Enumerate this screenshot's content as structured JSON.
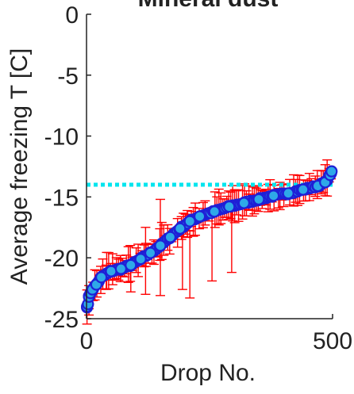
{
  "chart_data": {
    "type": "scatter",
    "title": "Mineral dust",
    "xlabel": "Drop No.",
    "ylabel": "Average freezing T [C]",
    "xlim": [
      0,
      500
    ],
    "ylim": [
      -25,
      0
    ],
    "xticks": [
      0,
      500
    ],
    "yticks": [
      0,
      -5,
      -10,
      -15,
      -20,
      -25
    ],
    "xtick_labels": [
      "0",
      "500"
    ],
    "ytick_labels": [
      "0",
      "-5",
      "-10",
      "-15",
      "-20",
      "-25"
    ],
    "grid": false,
    "box": false,
    "reference_line": {
      "y": -14,
      "style": "dotted",
      "color": "#00e5ee"
    },
    "sample_points": [
      {
        "x": 1,
        "y": -24.0
      },
      {
        "x": 3,
        "y": -23.8
      },
      {
        "x": 5,
        "y": -23.2
      },
      {
        "x": 8,
        "y": -22.9
      },
      {
        "x": 12,
        "y": -22.6
      },
      {
        "x": 20,
        "y": -22.2
      },
      {
        "x": 30,
        "y": -21.6
      },
      {
        "x": 50,
        "y": -21.1
      },
      {
        "x": 70,
        "y": -20.9
      },
      {
        "x": 90,
        "y": -20.6
      },
      {
        "x": 110,
        "y": -20.1
      },
      {
        "x": 130,
        "y": -19.6
      },
      {
        "x": 150,
        "y": -19.0
      },
      {
        "x": 170,
        "y": -18.3
      },
      {
        "x": 190,
        "y": -17.6
      },
      {
        "x": 210,
        "y": -17.0
      },
      {
        "x": 230,
        "y": -16.6
      },
      {
        "x": 260,
        "y": -16.2
      },
      {
        "x": 290,
        "y": -15.8
      },
      {
        "x": 320,
        "y": -15.5
      },
      {
        "x": 350,
        "y": -15.2
      },
      {
        "x": 380,
        "y": -14.9
      },
      {
        "x": 410,
        "y": -14.7
      },
      {
        "x": 440,
        "y": -14.4
      },
      {
        "x": 470,
        "y": -14.1
      },
      {
        "x": 485,
        "y": -13.8
      },
      {
        "x": 495,
        "y": -13.2
      },
      {
        "x": 498,
        "y": -12.9
      }
    ],
    "notable_error_bars": [
      {
        "x": 5,
        "low": -24.7,
        "high": -23.0
      },
      {
        "x": 40,
        "low": -22.6,
        "high": -20.6
      },
      {
        "x": 90,
        "low": -22.8,
        "high": -20.5
      },
      {
        "x": 120,
        "low": -23.0,
        "high": -17.5
      },
      {
        "x": 150,
        "low": -23.1,
        "high": -15.2
      },
      {
        "x": 195,
        "low": -22.6,
        "high": -17.9
      },
      {
        "x": 210,
        "low": -23.3,
        "high": -17.8
      },
      {
        "x": 255,
        "low": -21.9,
        "high": -16.0
      },
      {
        "x": 295,
        "low": -21.2,
        "high": -15.8
      },
      {
        "x": 330,
        "low": -16.1,
        "high": -14.1
      },
      {
        "x": 390,
        "low": -15.9,
        "high": -14.3
      }
    ],
    "colors": {
      "marker_fill": "#2ea8e8",
      "marker_edge": "#1f1fd6",
      "errorbar": "#ff0000",
      "axis": "#222222"
    }
  }
}
